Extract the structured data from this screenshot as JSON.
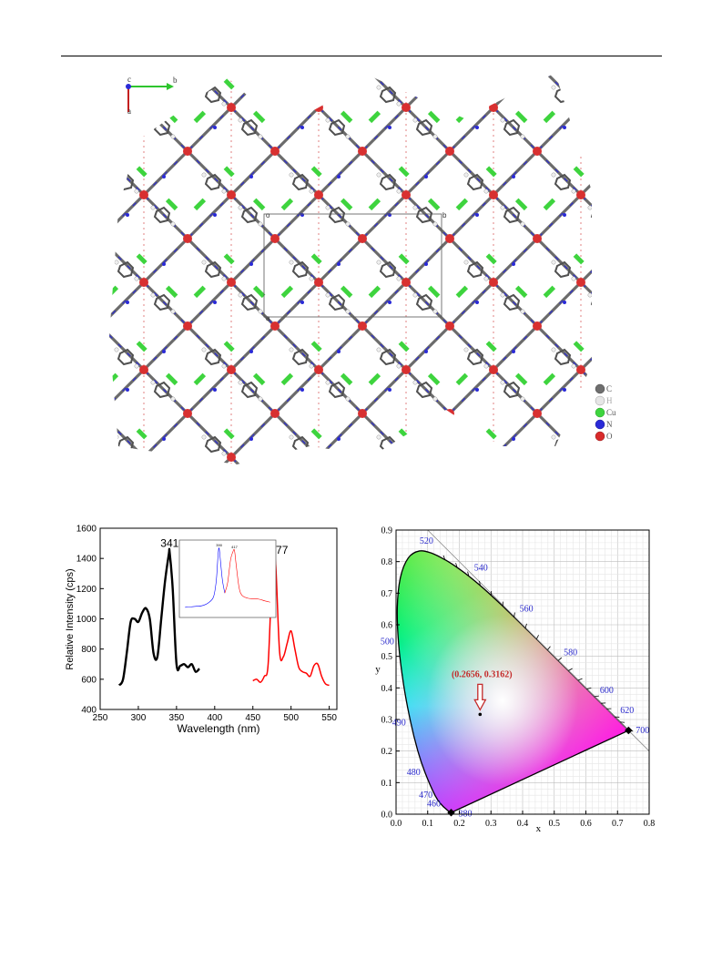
{
  "crystal": {
    "axes": {
      "c": "c",
      "b": "b",
      "a": "a"
    },
    "cell_labels": {
      "o": "o",
      "b": "b",
      "a": "a"
    },
    "legend": [
      {
        "label": "C",
        "color": "#6e6e6e"
      },
      {
        "label": "H",
        "color": "#e6e6e6"
      },
      {
        "label": "Cu",
        "color": "#3ed43e"
      },
      {
        "label": "N",
        "color": "#2a2ad8"
      },
      {
        "label": "O",
        "color": "#d82a2a"
      }
    ]
  },
  "chart_data": [
    {
      "type": "line",
      "xlabel": "Wavelength (nm)",
      "ylabel": "Relative Intensity (cps)",
      "xlim": [
        250,
        560
      ],
      "ylim": [
        400,
        1600
      ],
      "xticks": [
        250,
        300,
        350,
        400,
        450,
        500,
        550
      ],
      "yticks": [
        400,
        600,
        800,
        1000,
        1200,
        1400,
        1600
      ],
      "series": [
        {
          "color": "#000000",
          "x": [
            275,
            280,
            285,
            290,
            295,
            300,
            305,
            310,
            315,
            320,
            325,
            330,
            335,
            340,
            341,
            345,
            350,
            355,
            360,
            365,
            370,
            375,
            380
          ],
          "y": [
            560,
            600,
            780,
            980,
            1000,
            980,
            1040,
            1070,
            1000,
            770,
            750,
            1000,
            1250,
            1430,
            1440,
            1200,
            700,
            690,
            700,
            680,
            700,
            650,
            670
          ]
        },
        {
          "color": "#ff0000",
          "x": [
            450,
            455,
            460,
            465,
            470,
            475,
            477,
            480,
            485,
            490,
            495,
            500,
            505,
            510,
            515,
            520,
            525,
            530,
            535,
            540,
            545,
            550
          ],
          "y": [
            590,
            600,
            580,
            620,
            700,
            1300,
            1395,
            1350,
            780,
            750,
            840,
            920,
            800,
            680,
            650,
            640,
            620,
            690,
            700,
            620,
            570,
            560
          ]
        }
      ],
      "peak_labels": [
        "341",
        "477"
      ],
      "inset": {
        "peak_labels": [
          "390",
          "417"
        ],
        "series": [
          {
            "color": "#0000ff",
            "x": [
              330,
              340,
              350,
              360,
              370,
              380,
              385,
              388,
              390,
              393,
              396,
              400
            ],
            "y": [
              50,
              52,
              55,
              58,
              70,
              100,
              180,
              300,
              340,
              260,
              180,
              120
            ]
          },
          {
            "color": "#ff0000",
            "x": [
              400,
              405,
              410,
              414,
              417,
              420,
              425,
              430,
              440,
              450,
              460,
              470,
              480
            ],
            "y": [
              120,
              170,
              280,
              320,
              330,
              260,
              150,
              110,
              95,
              92,
              90,
              82,
              75
            ]
          }
        ]
      }
    },
    {
      "type": "scatter",
      "xlabel": "x",
      "ylabel": "y",
      "xlim": [
        0.0,
        0.8
      ],
      "ylim": [
        0.0,
        0.9
      ],
      "xticks": [
        "0.0",
        "0.1",
        "0.2",
        "0.3",
        "0.4",
        "0.5",
        "0.6",
        "0.7",
        "0.8"
      ],
      "yticks": [
        "0.0",
        "0.1",
        "0.2",
        "0.3",
        "0.4",
        "0.5",
        "0.6",
        "0.7",
        "0.8",
        "0.9"
      ],
      "wavelength_labels": [
        {
          "text": "380",
          "x": 0.1741,
          "y": 0.005
        },
        {
          "text": "460",
          "x": 0.144,
          "y": 0.0297
        },
        {
          "text": "470",
          "x": 0.1241,
          "y": 0.0578
        },
        {
          "text": "480",
          "x": 0.0913,
          "y": 0.1327
        },
        {
          "text": "490",
          "x": 0.0454,
          "y": 0.295
        },
        {
          "text": "500",
          "x": 0.0082,
          "y": 0.5384
        },
        {
          "text": "520",
          "x": 0.0743,
          "y": 0.8338
        },
        {
          "text": "540",
          "x": 0.2296,
          "y": 0.7543
        },
        {
          "text": "560",
          "x": 0.3731,
          "y": 0.6245
        },
        {
          "text": "580",
          "x": 0.5125,
          "y": 0.4866
        },
        {
          "text": "600",
          "x": 0.627,
          "y": 0.3725
        },
        {
          "text": "620",
          "x": 0.6915,
          "y": 0.3083
        },
        {
          "text": "700",
          "x": 0.7347,
          "y": 0.2653
        }
      ],
      "point": {
        "x": 0.2656,
        "y": 0.3162,
        "label": "(0.2656, 0.3162)"
      }
    }
  ]
}
